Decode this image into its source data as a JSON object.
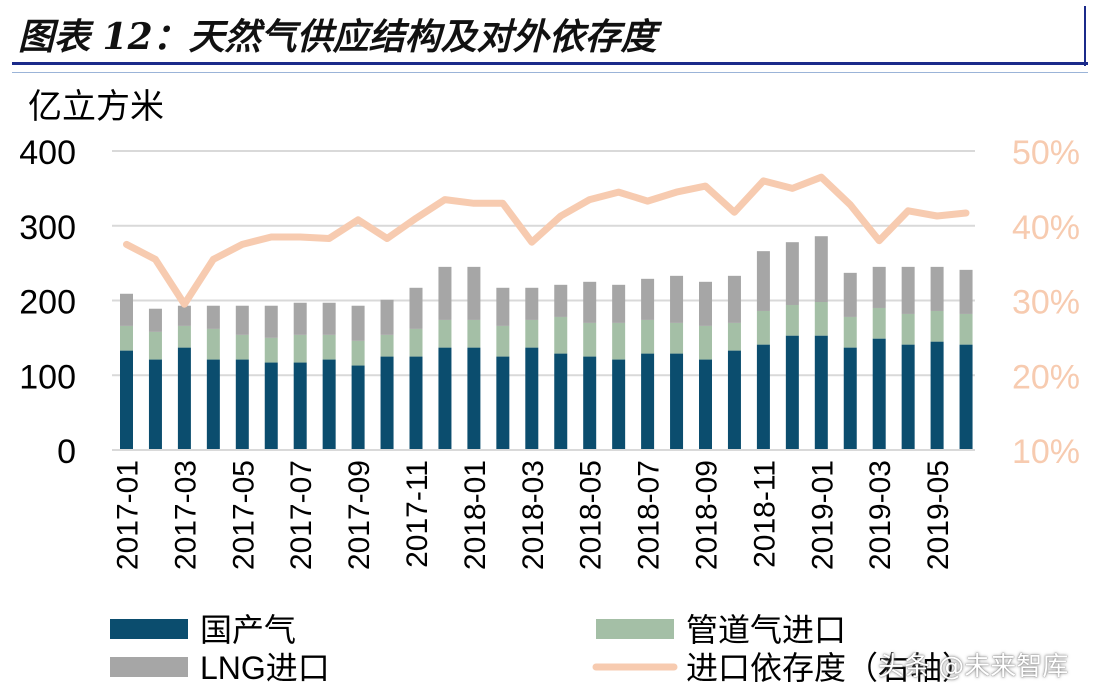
{
  "figure_title": "图表 12：天然气供应结构及对外依存度",
  "watermark": "头条 @未来智库",
  "chart_data": {
    "type": "bar",
    "stacked": true,
    "x": [
      "2017-01",
      "2017-02",
      "2017-03",
      "2017-04",
      "2017-05",
      "2017-06",
      "2017-07",
      "2017-08",
      "2017-09",
      "2017-10",
      "2017-11",
      "2017-12",
      "2018-01",
      "2018-02",
      "2018-03",
      "2018-04",
      "2018-05",
      "2018-06",
      "2018-07",
      "2018-08",
      "2018-09",
      "2018-10",
      "2018-11",
      "2018-12",
      "2019-01",
      "2019-02",
      "2019-03",
      "2019-04",
      "2019-05",
      "2019-06"
    ],
    "x_tick_labels": [
      "2017-01",
      "2017-03",
      "2017-05",
      "2017-07",
      "2017-09",
      "2017-11",
      "2018-01",
      "2018-03",
      "2018-05",
      "2018-07",
      "2018-09",
      "2018-11",
      "2019-01",
      "2019-03",
      "2019-05"
    ],
    "series": [
      {
        "name": "国产气",
        "type": "bar",
        "color": "#0b4d6e",
        "values": [
          133,
          121,
          137,
          121,
          121,
          117,
          117,
          121,
          113,
          125,
          125,
          137,
          137,
          125,
          137,
          129,
          125,
          121,
          129,
          129,
          121,
          133,
          141,
          153,
          153,
          137,
          149,
          141,
          145,
          141
        ]
      },
      {
        "name": "管道气进口",
        "type": "bar",
        "color": "#a4bfa6",
        "values": [
          33,
          37,
          29,
          41,
          33,
          33,
          37,
          33,
          33,
          29,
          37,
          37,
          37,
          41,
          37,
          49,
          45,
          49,
          45,
          41,
          45,
          37,
          45,
          41,
          45,
          41,
          41,
          41,
          41,
          41
        ]
      },
      {
        "name": "LNG进口",
        "type": "bar",
        "color": "#a6a6a6",
        "values": [
          43,
          31,
          27,
          31,
          39,
          43,
          43,
          43,
          47,
          47,
          55,
          71,
          71,
          51,
          43,
          43,
          55,
          51,
          55,
          63,
          59,
          63,
          80,
          84,
          88,
          59,
          55,
          63,
          59,
          59
        ]
      },
      {
        "name": "进口依存度（右轴）",
        "type": "line",
        "axis": "right",
        "color": "#f7cbb0",
        "values": [
          37.5,
          35.5,
          29.5,
          35.5,
          37.5,
          38.5,
          38.5,
          38.3,
          40.8,
          38.3,
          41.0,
          43.5,
          43.0,
          43.0,
          37.8,
          41.3,
          43.5,
          44.5,
          43.3,
          44.5,
          45.3,
          41.8,
          46.0,
          45.0,
          46.5,
          42.8,
          38.0,
          42.0,
          41.3,
          41.7
        ]
      }
    ],
    "yleft_label": "亿立方米",
    "yleft_range": [
      0,
      400
    ],
    "yleft_ticks": [
      "0",
      "100",
      "200",
      "300",
      "400"
    ],
    "yright_range": [
      10,
      50
    ],
    "yright_ticks": [
      "10%",
      "20%",
      "30%",
      "40%",
      "50%"
    ],
    "grid": true,
    "legend_position": "bottom"
  }
}
